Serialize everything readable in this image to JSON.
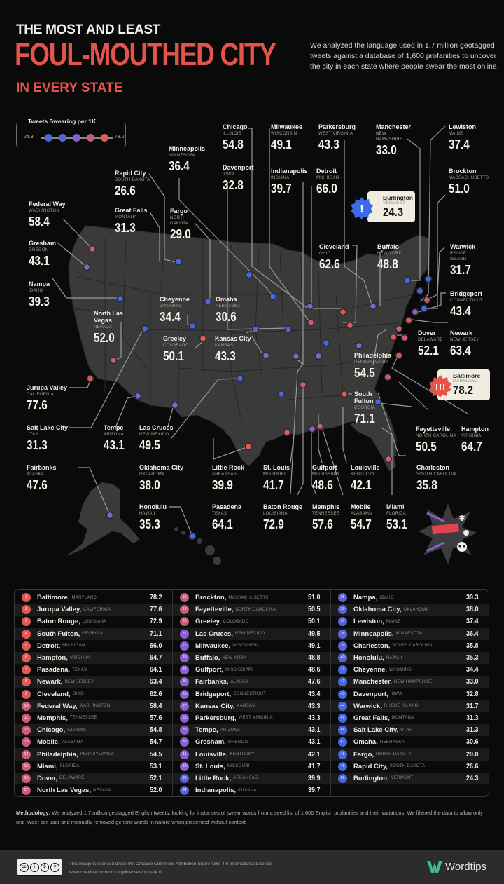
{
  "header": {
    "pretitle": "THE MOST AND LEAST",
    "title": "FOUL-MOUTHED CITY",
    "subtitle": "IN EVERY STATE",
    "description": "We analyzed the language used in 1.7 million geotagged tweets against a database of 1,600 profanities to uncover the city in each state where people swear the most online."
  },
  "legend": {
    "title": "Tweets Swearing per 1K",
    "min": "24.3",
    "max": "78.2",
    "colors": [
      "#4a66e0",
      "#5a62d8",
      "#8a5fd0",
      "#c85d79",
      "#e05a55"
    ]
  },
  "map_labels": {
    "federal_way": {
      "city": "Federal Way",
      "state": "WASHINGTON",
      "value": "58.4"
    },
    "gresham": {
      "city": "Gresham",
      "state": "OREGON",
      "value": "43.1"
    },
    "nampa": {
      "city": "Nampa",
      "state": "IDAHO",
      "value": "39.3"
    },
    "north_las_vegas": {
      "city": "North Las Vegas",
      "state": "NEVADA",
      "value": "52.0"
    },
    "jurupa_valley": {
      "city": "Jurupa Valley",
      "state": "CALIFORNIA",
      "value": "77.6"
    },
    "salt_lake_city": {
      "city": "Salt Lake City",
      "state": "UTAH",
      "value": "31.3"
    },
    "tempe": {
      "city": "Tempe",
      "state": "ARIZONA",
      "value": "43.1"
    },
    "las_cruces": {
      "city": "Las Cruces",
      "state": "NEW MEXICO",
      "value": "49.5"
    },
    "fairbanks": {
      "city": "Fairbanks",
      "state": "ALASKA",
      "value": "47.6"
    },
    "honolulu": {
      "city": "Honolulu",
      "state": "HAWAII",
      "value": "35.3"
    },
    "oklahoma_city": {
      "city": "Oklahoma City",
      "state": "OKLAHOMA",
      "value": "38.0"
    },
    "rapid_city": {
      "city": "Rapid City",
      "state": "SOUTH DAKOTA",
      "value": "26.6"
    },
    "great_falls": {
      "city": "Great Falls",
      "state": "MONTANA",
      "value": "31.3"
    },
    "minneapolis": {
      "city": "Minneapolis",
      "state": "MINNESOTA",
      "value": "36.4"
    },
    "fargo": {
      "city": "Fargo",
      "state": "NORTH DAKOTA",
      "value": "29.0"
    },
    "cheyenne": {
      "city": "Cheyenne",
      "state": "WYOMING",
      "value": "34.4"
    },
    "greeley": {
      "city": "Greeley",
      "state": "COLORADO",
      "value": "50.1"
    },
    "omaha": {
      "city": "Omaha",
      "state": "NEBRASKA",
      "value": "30.6"
    },
    "kansas_city": {
      "city": "Kansas City",
      "state": "KANSAS",
      "value": "43.3"
    },
    "chicago": {
      "city": "Chicago",
      "state": "ILLINOIS",
      "value": "54.8"
    },
    "davenport": {
      "city": "Davenport",
      "state": "IOWA",
      "value": "32.8"
    },
    "milwaukee": {
      "city": "Milwaukee",
      "state": "WISCONSIN",
      "value": "49.1"
    },
    "indianapolis": {
      "city": "Indianapolis",
      "state": "INDIANA",
      "value": "39.7"
    },
    "parkersburg": {
      "city": "Parkersburg",
      "state": "WEST VIRGINIA",
      "value": "43.3"
    },
    "detroit": {
      "city": "Detroit",
      "state": "MICHIGAN",
      "value": "66.0"
    },
    "cleveland": {
      "city": "Cleveland",
      "state": "OHIO",
      "value": "62.6"
    },
    "manchester": {
      "city": "Manchester",
      "state": "NEW HAMPSHIRE",
      "value": "33.0"
    },
    "burlington": {
      "city": "Burlington",
      "state": "VERMONT",
      "value": "24.3"
    },
    "buffalo": {
      "city": "Buffalo",
      "state": "NEW YORK",
      "value": "48.8"
    },
    "lewiston": {
      "city": "Lewiston",
      "state": "MAINE",
      "value": "37.4"
    },
    "brockton": {
      "city": "Brockton",
      "state": "MASSACHUSETTS",
      "value": "51.0"
    },
    "warwick": {
      "city": "Warwick",
      "state": "RHODE ISLAND",
      "value": "31.7"
    },
    "bridgeport": {
      "city": "Bridgeport",
      "state": "CONNECTICUT",
      "value": "43.4"
    },
    "dover": {
      "city": "Dover",
      "state": "DELAWARE",
      "value": "52.1"
    },
    "newark": {
      "city": "Newark",
      "state": "NEW JERSEY",
      "value": "63.4"
    },
    "philadelphia": {
      "city": "Philadelphia",
      "state": "PENNSYLVANIA",
      "value": "54.5"
    },
    "baltimore": {
      "city": "Baltimore",
      "state": "MARYLAND",
      "value": "78.2"
    },
    "south_fulton": {
      "city": "South Fulton",
      "state": "GEORGIA",
      "value": "71.1"
    },
    "fayetteville": {
      "city": "Fayetteville",
      "state": "NORTH CAROLINA",
      "value": "50.5"
    },
    "hampton": {
      "city": "Hampton",
      "state": "VIRGINIA",
      "value": "64.7"
    },
    "charleston": {
      "city": "Charleston",
      "state": "SOUTH CAROLINA",
      "value": "35.8"
    },
    "little_rock": {
      "city": "Little Rock",
      "state": "ARKANSAS",
      "value": "39.9"
    },
    "st_louis": {
      "city": "St. Louis",
      "state": "MISSOURI",
      "value": "41.7"
    },
    "gulfport": {
      "city": "Gulfport",
      "state": "MISSISSIPPI",
      "value": "48.6"
    },
    "louisville": {
      "city": "Louisville",
      "state": "KENTUCKY",
      "value": "42.1"
    },
    "pasadena": {
      "city": "Pasadena",
      "state": "TEXAS",
      "value": "64.1"
    },
    "baton_rouge": {
      "city": "Baton Rouge",
      "state": "LOUISIANA",
      "value": "72.9"
    },
    "memphis": {
      "city": "Memphis",
      "state": "TENNESSEE",
      "value": "57.6"
    },
    "mobile": {
      "city": "Mobile",
      "state": "ALABAMA",
      "value": "54.7"
    },
    "miami": {
      "city": "Miami",
      "state": "FLORIDA",
      "value": "53.1"
    }
  },
  "chart_data": {
    "type": "table",
    "title": "The Most and Least Foul-Mouthed City in Every State",
    "metric": "Tweets Swearing per 1K",
    "range": [
      24.3,
      78.2
    ],
    "rows": [
      {
        "rank": 1,
        "city": "Baltimore",
        "state": "MARYLAND",
        "value": 78.2
      },
      {
        "rank": 2,
        "city": "Jurupa Valley",
        "state": "CALIFORNIA",
        "value": 77.6
      },
      {
        "rank": 3,
        "city": "Baton Rouge",
        "state": "LOUISIANA",
        "value": 72.9
      },
      {
        "rank": 4,
        "city": "South Fulton",
        "state": "GEORGIA",
        "value": 71.1
      },
      {
        "rank": 5,
        "city": "Detroit",
        "state": "MICHIGAN",
        "value": 66.0
      },
      {
        "rank": 6,
        "city": "Hampton",
        "state": "VIRGINIA",
        "value": 64.7
      },
      {
        "rank": 7,
        "city": "Pasadena",
        "state": "TEXAS",
        "value": 64.1
      },
      {
        "rank": 8,
        "city": "Newark",
        "state": "NEW JERSEY",
        "value": 63.4
      },
      {
        "rank": 9,
        "city": "Cleveland",
        "state": "OHIO",
        "value": 62.6
      },
      {
        "rank": 10,
        "city": "Federal Way",
        "state": "WASHINGTON",
        "value": 58.4
      },
      {
        "rank": 11,
        "city": "Memphis",
        "state": "TENNESSEE",
        "value": 57.6
      },
      {
        "rank": 12,
        "city": "Chicago",
        "state": "ILLINOIS",
        "value": 54.8
      },
      {
        "rank": 13,
        "city": "Mobile",
        "state": "ALABAMA",
        "value": 54.7
      },
      {
        "rank": 14,
        "city": "Philadelphia",
        "state": "PENNSYLVANIA",
        "value": 54.5
      },
      {
        "rank": 15,
        "city": "Miami",
        "state": "FLORIDA",
        "value": 53.1
      },
      {
        "rank": 16,
        "city": "Dover",
        "state": "DELAWARE",
        "value": 52.1
      },
      {
        "rank": 17,
        "city": "North Las Vegas",
        "state": "NEVADA",
        "value": 52.0
      },
      {
        "rank": 18,
        "city": "Brockton",
        "state": "MASSACHUSETTS",
        "value": 51.0
      },
      {
        "rank": 19,
        "city": "Fayetteville",
        "state": "NORTH CAROLINA",
        "value": 50.5
      },
      {
        "rank": 20,
        "city": "Greeley",
        "state": "COLORADO",
        "value": 50.1
      },
      {
        "rank": 21,
        "city": "Las Cruces",
        "state": "NEW MEXICO",
        "value": 49.5
      },
      {
        "rank": 22,
        "city": "Milwaukee",
        "state": "WISCONSIN",
        "value": 49.1
      },
      {
        "rank": 23,
        "city": "Buffalo",
        "state": "NEW YORK",
        "value": 48.8
      },
      {
        "rank": 24,
        "city": "Gulfport",
        "state": "MISSISSIPPI",
        "value": 48.6
      },
      {
        "rank": 25,
        "city": "Fairbanks",
        "state": "ALASKA",
        "value": 47.6
      },
      {
        "rank": 26,
        "city": "Bridgeport",
        "state": "CONNECTICUT",
        "value": 43.4
      },
      {
        "rank": 27,
        "city": "Kansas City",
        "state": "KANSAS",
        "value": 43.3
      },
      {
        "rank": 28,
        "city": "Parkersburg",
        "state": "WEST VIRGINIA",
        "value": 43.3
      },
      {
        "rank": 29,
        "city": "Tempe",
        "state": "ARIZONA",
        "value": 43.1
      },
      {
        "rank": 30,
        "city": "Gresham",
        "state": "OREGON",
        "value": 43.1
      },
      {
        "rank": 31,
        "city": "Louisville",
        "state": "KENTUCKY",
        "value": 42.1
      },
      {
        "rank": 32,
        "city": "St. Louis",
        "state": "MISSOURI",
        "value": 41.7
      },
      {
        "rank": 33,
        "city": "Little Rock",
        "state": "ARKANSAS",
        "value": 39.9
      },
      {
        "rank": 34,
        "city": "Indianapolis",
        "state": "INDIANA",
        "value": 39.7
      },
      {
        "rank": 35,
        "city": "Nampa",
        "state": "IDAHO",
        "value": 39.3
      },
      {
        "rank": 36,
        "city": "Oklahoma City",
        "state": "OKLAHOMA",
        "value": 38.0
      },
      {
        "rank": 37,
        "city": "Lewiston",
        "state": "MAINE",
        "value": 37.4
      },
      {
        "rank": 38,
        "city": "Minneapolis",
        "state": "MINNESOTA",
        "value": 36.4
      },
      {
        "rank": 39,
        "city": "Charleston",
        "state": "SOUTH CAROLINA",
        "value": 35.8
      },
      {
        "rank": 40,
        "city": "Honolulu",
        "state": "HAWAII",
        "value": 35.3
      },
      {
        "rank": 41,
        "city": "Cheyenne",
        "state": "WYOMING",
        "value": 34.4
      },
      {
        "rank": 42,
        "city": "Manchester",
        "state": "NEW HAMPSHIRE",
        "value": 33.0
      },
      {
        "rank": 43,
        "city": "Davenport",
        "state": "IOWA",
        "value": 32.8
      },
      {
        "rank": 44,
        "city": "Warwick",
        "state": "RHODE ISLAND",
        "value": 31.7
      },
      {
        "rank": 45,
        "city": "Great Falls",
        "state": "MONTANA",
        "value": 31.3
      },
      {
        "rank": 46,
        "city": "Salt Lake City",
        "state": "UTAH",
        "value": 31.3
      },
      {
        "rank": 47,
        "city": "Omaha",
        "state": "NEBRASKA",
        "value": 30.6
      },
      {
        "rank": 48,
        "city": "Fargo",
        "state": "NORTH DAKOTA",
        "value": 29.0
      },
      {
        "rank": 49,
        "city": "Rapid City",
        "state": "SOUTH DAKOTA",
        "value": 26.6
      },
      {
        "rank": 50,
        "city": "Burlington",
        "state": "VERMONT",
        "value": 24.3
      }
    ]
  },
  "methodology": {
    "label": "Methodology:",
    "text": "We analyzed 1.7 million geotagged English tweets, looking for instances of swear words from a seed list of 1,600 English profanities and their variations. We filtered the data to allow only one tweet per user and manually removed generic words in nature when presented without context."
  },
  "footer": {
    "license_line1": "This image is licensed under the Creative Commons Attribution-Share Alike 4.0 International License",
    "license_line2": "www.creativecommons.org/licenses/by-sa/4.0",
    "cc_labels": [
      "cc",
      "i",
      "$",
      "="
    ],
    "brand": "Wordtips"
  }
}
